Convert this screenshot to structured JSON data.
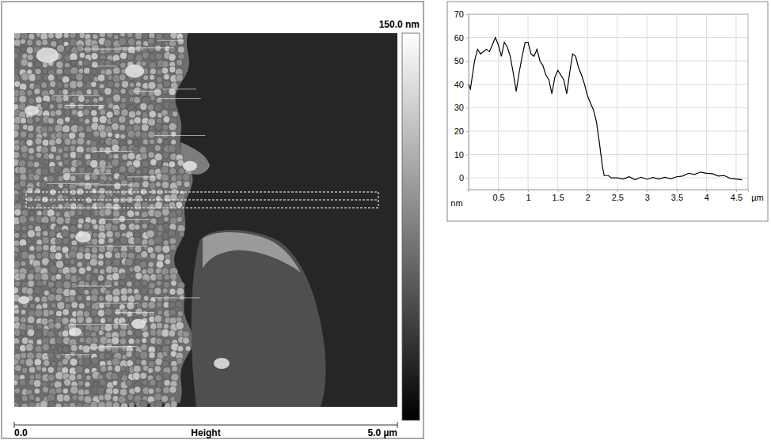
{
  "chart_data": [
    {
      "type": "image",
      "channel": "Height",
      "colorbar": {
        "range": [
          0,
          150
        ],
        "ticks": [
          {
            "value": 150,
            "label": "150.0 nm"
          }
        ]
      },
      "xlim": [
        0,
        5
      ],
      "xticks": [
        {
          "value": 0,
          "label": "0.0"
        },
        {
          "value": 5,
          "label": "5.0 µm"
        }
      ]
    },
    {
      "type": "line",
      "x_label": "µm",
      "y_label": "nm",
      "x": [
        0,
        0.03,
        0.1,
        0.15,
        0.2,
        0.3,
        0.35,
        0.4,
        0.45,
        0.5,
        0.55,
        0.6,
        0.65,
        0.7,
        0.75,
        0.8,
        0.85,
        0.9,
        0.95,
        1.0,
        1.05,
        1.1,
        1.15,
        1.2,
        1.25,
        1.3,
        1.35,
        1.4,
        1.45,
        1.5,
        1.55,
        1.6,
        1.65,
        1.7,
        1.75,
        1.8,
        1.85,
        1.9,
        1.95,
        2.0,
        2.05,
        2.1,
        2.15,
        2.2,
        2.25,
        2.28,
        2.35,
        2.4,
        2.5,
        2.6,
        2.7,
        2.8,
        2.9,
        3.0,
        3.1,
        3.2,
        3.3,
        3.4,
        3.5,
        3.6,
        3.7,
        3.8,
        3.9,
        4.0,
        4.1,
        4.2,
        4.3,
        4.4,
        4.5,
        4.6
      ],
      "values": [
        40,
        38,
        50,
        55,
        53,
        55,
        54,
        57,
        60,
        57,
        52,
        58,
        56,
        52,
        45,
        37,
        45,
        52,
        58,
        58,
        53,
        52,
        55,
        50,
        48,
        44,
        42,
        36,
        43,
        46,
        44,
        42,
        36,
        45,
        53,
        52,
        47,
        44,
        40,
        35,
        32,
        29,
        24,
        15,
        5,
        1,
        1,
        0,
        0,
        -0.5,
        0.5,
        -0.8,
        0.3,
        -0.6,
        0.2,
        -0.5,
        0.3,
        -0.4,
        0.5,
        0.8,
        2,
        1.5,
        2.5,
        2,
        1.8,
        0.8,
        1,
        -0.2,
        -0.5,
        -0.8
      ],
      "color": "#000000",
      "xlim": [
        0,
        4.7
      ],
      "xticks": [
        0.5,
        1,
        1.5,
        2,
        2.5,
        3,
        3.5,
        4,
        4.5
      ],
      "ylim": [
        -5,
        70
      ],
      "yticks": [
        0,
        10,
        20,
        30,
        40,
        50,
        60,
        70
      ],
      "grid": true
    }
  ]
}
